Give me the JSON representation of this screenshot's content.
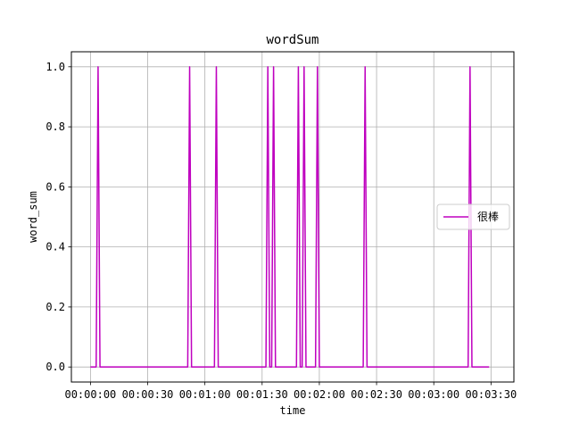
{
  "chart_data": {
    "type": "line",
    "title": "wordSum",
    "xlabel": "time",
    "ylabel": "word_sum",
    "x_unit": "seconds",
    "xlim": [
      -10,
      222
    ],
    "ylim": [
      -0.05,
      1.05
    ],
    "x_ticks": [
      {
        "value": 0,
        "label": "00:00:00"
      },
      {
        "value": 30,
        "label": "00:00:30"
      },
      {
        "value": 60,
        "label": "00:01:00"
      },
      {
        "value": 90,
        "label": "00:01:30"
      },
      {
        "value": 120,
        "label": "00:02:00"
      },
      {
        "value": 150,
        "label": "00:02:30"
      },
      {
        "value": 180,
        "label": "00:03:00"
      },
      {
        "value": 210,
        "label": "00:03:30"
      }
    ],
    "y_ticks": [
      {
        "value": 0.0,
        "label": "0.0"
      },
      {
        "value": 0.2,
        "label": "0.2"
      },
      {
        "value": 0.4,
        "label": "0.4"
      },
      {
        "value": 0.6,
        "label": "0.6"
      },
      {
        "value": 0.8,
        "label": "0.8"
      },
      {
        "value": 1.0,
        "label": "1.0"
      }
    ],
    "grid": true,
    "legend_position": "center-right",
    "series": [
      {
        "name": "很棒",
        "color": "#bf00bf",
        "x": [
          0,
          3,
          4,
          5,
          51,
          52,
          53,
          65,
          66,
          67,
          92,
          93,
          94,
          95,
          96,
          97,
          108,
          109,
          110,
          111,
          112,
          113,
          118,
          119,
          120,
          143,
          144,
          145,
          198,
          199,
          200,
          209
        ],
        "y": [
          0,
          0,
          1,
          0,
          0,
          1,
          0,
          0,
          1,
          0,
          0,
          1,
          0,
          0,
          1,
          0,
          0,
          1,
          0,
          0,
          1,
          0,
          0,
          1,
          0,
          0,
          1,
          0,
          0,
          1,
          0,
          0
        ]
      }
    ]
  }
}
